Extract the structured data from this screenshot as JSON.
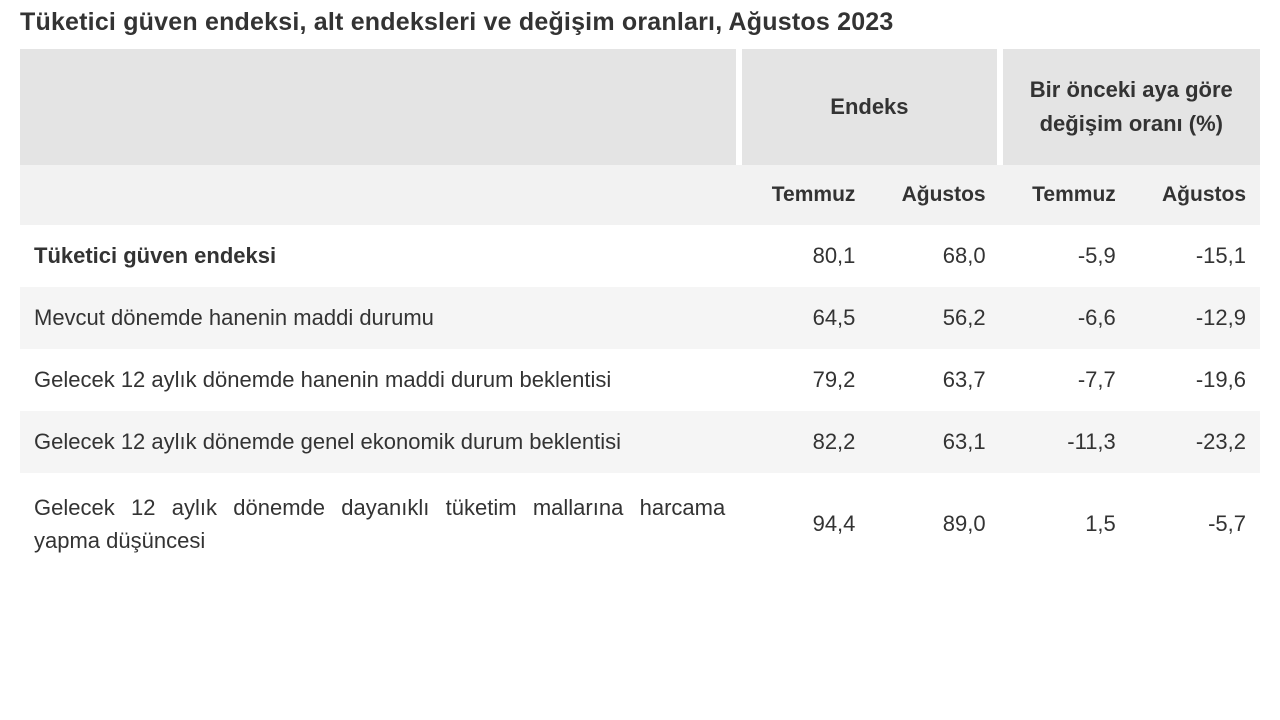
{
  "title": "Tüketici güven endeksi, alt endeksleri ve değişim oranları, Ağustos 2023",
  "header": {
    "group1": "Endeks",
    "group2": "Bir önceki aya göre\ndeğişim oranı (%)",
    "col1": "Temmuz",
    "col2": "Ağustos",
    "col3": "Temmuz",
    "col4": "Ağustos"
  },
  "rows": [
    {
      "label": "Tüketici güven endeksi",
      "bold": true,
      "v1": "80,1",
      "v2": "68,0",
      "v3": "-5,9",
      "v4": "-15,1"
    },
    {
      "label": "Mevcut dönemde hanenin maddi durumu",
      "v1": "64,5",
      "v2": "56,2",
      "v3": "-6,6",
      "v4": "-12,9"
    },
    {
      "label": "Gelecek 12 aylık dönemde hanenin maddi durum beklentisi",
      "v1": "79,2",
      "v2": "63,7",
      "v3": "-7,7",
      "v4": "-19,6"
    },
    {
      "label": "Gelecek 12 aylık dönemde genel ekonomik durum beklentisi",
      "v1": "82,2",
      "v2": "63,1",
      "v3": "-11,3",
      "v4": "-23,2"
    },
    {
      "label": "Gelecek 12 aylık dönemde dayanıklı tüketim mallarına harcama yapma düşüncesi",
      "justify": true,
      "v1": "94,4",
      "v2": "89,0",
      "v3": "1,5",
      "v4": "-5,7"
    }
  ],
  "style": {
    "header_bg": "#e4e4e4",
    "subheader_bg": "#f2f2f2",
    "row_alt_bg": "#f5f5f5",
    "text_color": "#333333",
    "font_size_title": 25,
    "font_size_header": 22,
    "font_size_body": 22
  }
}
